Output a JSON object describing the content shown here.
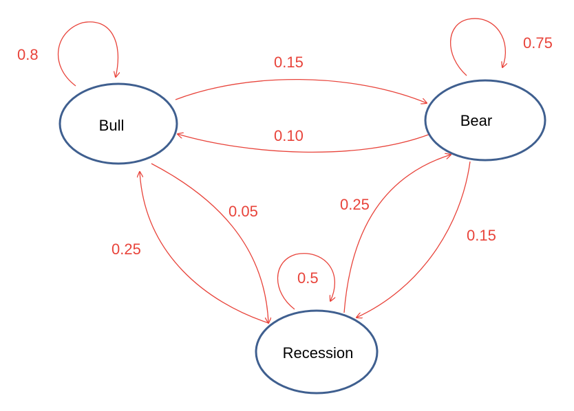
{
  "nodes": {
    "bull": {
      "label": "Bull"
    },
    "bear": {
      "label": "Bear"
    },
    "recession": {
      "label": "Recession"
    }
  },
  "edges": {
    "bull_bull": {
      "label": "0.8"
    },
    "bear_bear": {
      "label": "0.75"
    },
    "recession_recession": {
      "label": "0.5"
    },
    "bull_bear": {
      "label": "0.15"
    },
    "bear_bull": {
      "label": "0.10"
    },
    "bull_recession": {
      "label": "0.05"
    },
    "recession_bull": {
      "label": "0.25"
    },
    "recession_bear": {
      "label": "0.25"
    },
    "bear_recession": {
      "label": "0.15"
    }
  },
  "colors": {
    "node_stroke": "#3f5f8f",
    "edge": "#e8433a"
  }
}
